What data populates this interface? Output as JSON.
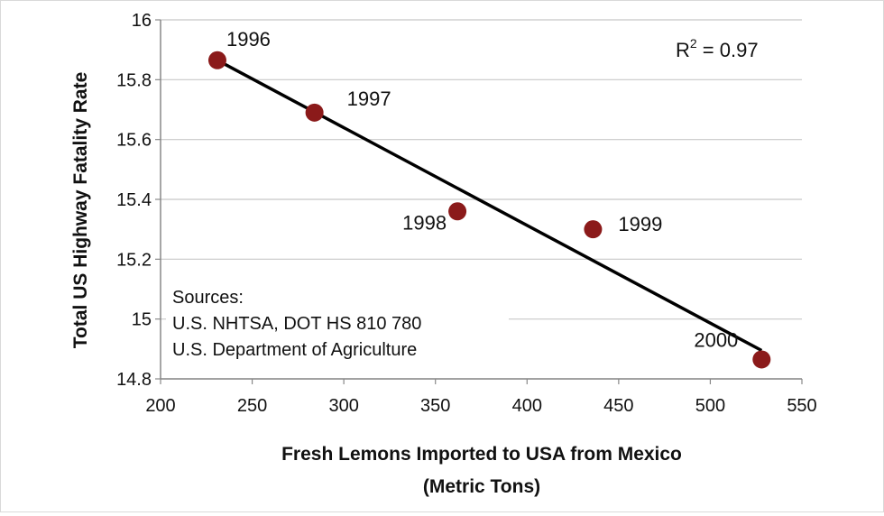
{
  "chart_data": {
    "type": "scatter",
    "xlabel_line1": "Fresh Lemons Imported to USA from Mexico",
    "xlabel_line2": "(Metric Tons)",
    "ylabel": "Total US Highway Fatality Rate",
    "xlim": [
      200,
      550
    ],
    "ylim": [
      14.8,
      16
    ],
    "xticks": [
      "200",
      "250",
      "300",
      "350",
      "400",
      "450",
      "500",
      "550"
    ],
    "yticks": [
      "14.8",
      "15",
      "15.2",
      "15.4",
      "15.6",
      "15.8",
      "16"
    ],
    "points": [
      {
        "label": "1996",
        "x": 231,
        "y": 15.865
      },
      {
        "label": "1997",
        "x": 284,
        "y": 15.69
      },
      {
        "label": "1998",
        "x": 362,
        "y": 15.36
      },
      {
        "label": "1999",
        "x": 436,
        "y": 15.3
      },
      {
        "label": "2000",
        "x": 528,
        "y": 14.865
      }
    ],
    "trendline": {
      "x": [
        231,
        528
      ],
      "y": [
        15.865,
        14.895
      ]
    },
    "r_squared": {
      "prefix": "R",
      "sup": "2",
      "suffix": " = 0.97"
    },
    "sources": [
      "Sources:",
      "U.S. NHTSA, DOT HS 810 780",
      "U.S. Department of Agriculture"
    ],
    "grid": true,
    "colors": {
      "marker": "#8b1a1a",
      "line": "#000000",
      "grid": "#c8c8c8",
      "axis": "#888888"
    }
  }
}
